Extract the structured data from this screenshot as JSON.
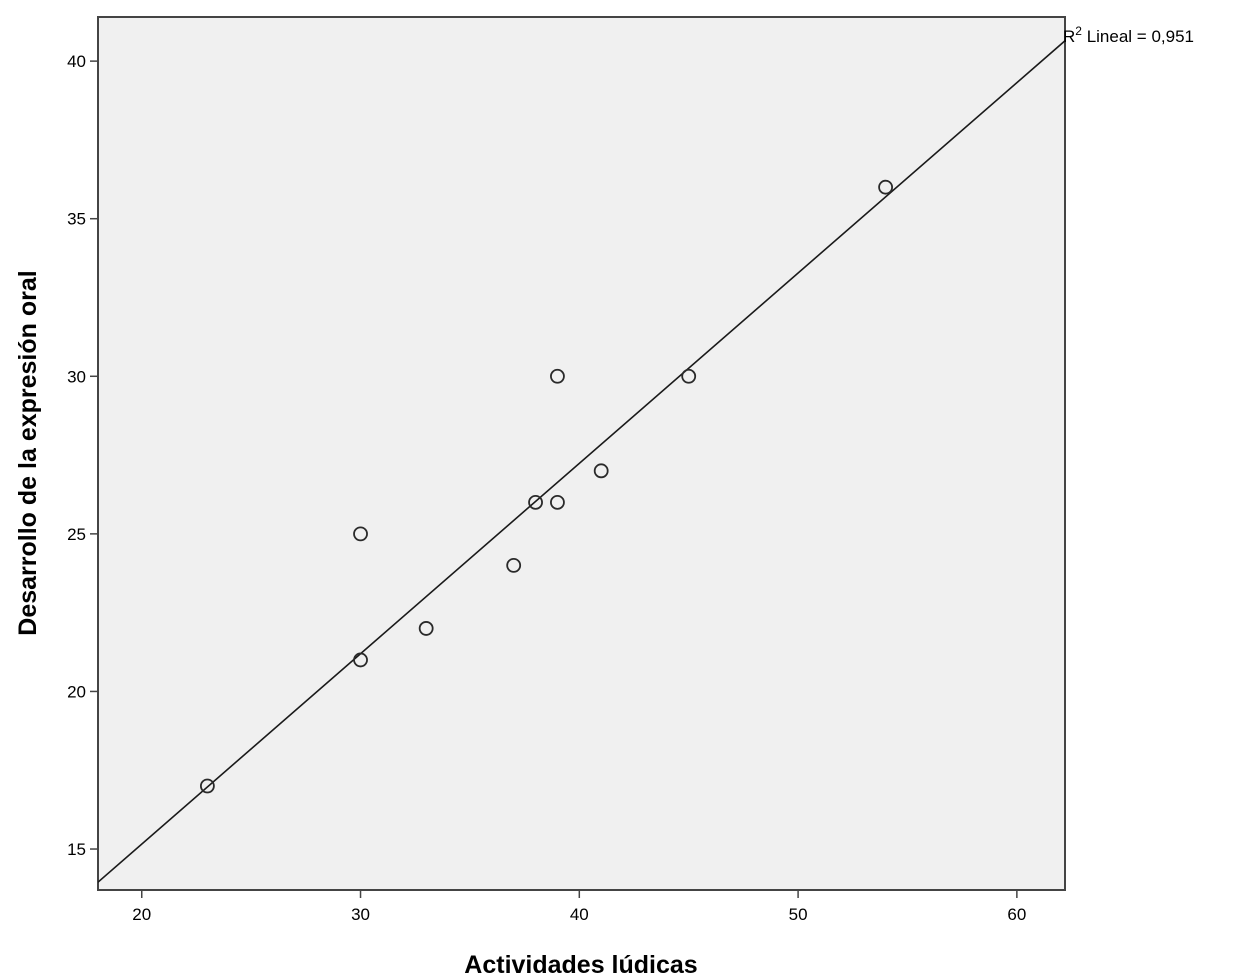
{
  "chart_data": {
    "type": "scatter",
    "xlabel": "Actividades lúdicas",
    "ylabel": "Desarrollo de la expresión oral",
    "xlim": [
      18,
      62.2
    ],
    "ylim": [
      13.7,
      41.4
    ],
    "x_ticks": [
      20,
      30,
      40,
      50,
      60
    ],
    "y_ticks": [
      15,
      20,
      25,
      30,
      35,
      40
    ],
    "grid": false,
    "points": [
      {
        "x": 23,
        "y": 17
      },
      {
        "x": 30,
        "y": 21
      },
      {
        "x": 30,
        "y": 25
      },
      {
        "x": 33,
        "y": 22
      },
      {
        "x": 37,
        "y": 24
      },
      {
        "x": 38,
        "y": 26
      },
      {
        "x": 39,
        "y": 26
      },
      {
        "x": 39,
        "y": 30
      },
      {
        "x": 41,
        "y": 27
      },
      {
        "x": 45,
        "y": 30
      },
      {
        "x": 54,
        "y": 36
      }
    ],
    "fit_line": {
      "type": "linear",
      "slope": 0.604,
      "intercept": 3.077,
      "label_prefix": "R",
      "label_superscript": "2",
      "label_suffix": " Lineal = 0,951"
    },
    "colors": {
      "plot_background": "#f0f0f0",
      "marker_stroke": "#2a2a2a",
      "line": "#1a1a1a"
    }
  }
}
